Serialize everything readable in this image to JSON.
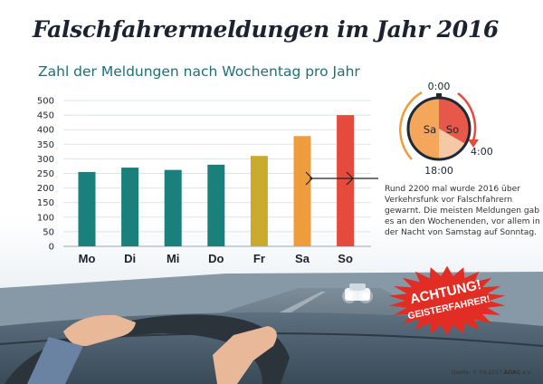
{
  "title": "Falschfahrermeldungen im Jahr 2016",
  "subtitle": "Zahl der Meldungen nach Wochentag pro Jahr",
  "note": "Rund 2200 mal wurde 2016 über Verkehrsfunk vor Falschfahrern gewarnt. Die meisten Meldungen gab es an den Wochenenden, vor allem in der Nacht von Samstag auf Sonntag.",
  "source_prefix": "Quelle: © 04.2017",
  "source_org": "ADAC",
  "source_suffix": "e.V.",
  "clock": {
    "top_label": "0:00",
    "right_label": "4:00",
    "bottom_label": "18:00",
    "left_segment_label": "Sa",
    "right_segment_label": "So"
  },
  "badge": {
    "line1": "ACHTUNG!",
    "line2": "GEISTERFAHRER!"
  },
  "colors": {
    "teal": "#19807c",
    "yellow": "#c9aa2d",
    "orange": "#ef9c3c",
    "red": "#e44b3c",
    "text_dark": "#1c2330",
    "subtitle": "#1f6f78"
  },
  "chart_data": {
    "type": "bar",
    "categories": [
      "Mo",
      "Di",
      "Mi",
      "Do",
      "Fr",
      "Sa",
      "So"
    ],
    "values": [
      255,
      270,
      262,
      280,
      310,
      378,
      450
    ],
    "bar_colors": [
      "#19807c",
      "#19807c",
      "#19807c",
      "#19807c",
      "#c9aa2d",
      "#ef9c3c",
      "#e44b3c"
    ],
    "title": "Zahl der Meldungen nach Wochentag pro Jahr",
    "xlabel": "",
    "ylabel": "",
    "ylim": [
      0,
      500
    ],
    "yticks": [
      0,
      50,
      100,
      150,
      200,
      250,
      300,
      350,
      400,
      450,
      500
    ],
    "grid": true,
    "legend": "none"
  }
}
